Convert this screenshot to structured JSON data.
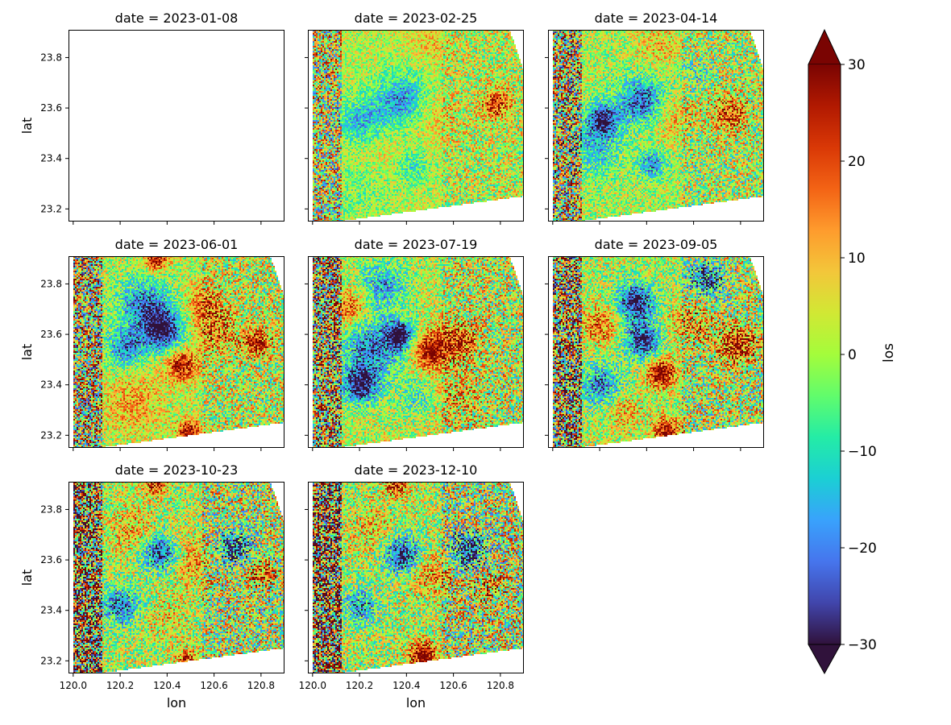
{
  "figure": {
    "variable": "los",
    "xlabel": "lon",
    "ylabel": "lat",
    "facet_key": "date"
  },
  "chart_data": {
    "type": "heatmap",
    "facet_by": "date",
    "panels": [
      {
        "title": "date = 2023-01-08",
        "date": "2023-01-08",
        "has_data": false
      },
      {
        "title": "date = 2023-02-25",
        "date": "2023-02-25",
        "has_data": true,
        "blobs": [
          [
            120.38,
            23.63,
            12,
            -22
          ],
          [
            120.2,
            23.55,
            10,
            -16
          ],
          [
            120.5,
            23.58,
            12,
            8
          ],
          [
            120.78,
            23.62,
            6,
            22
          ],
          [
            120.3,
            23.42,
            10,
            4
          ],
          [
            120.42,
            23.37,
            7,
            -12
          ],
          [
            120.2,
            23.28,
            12,
            -6
          ],
          [
            120.5,
            23.86,
            10,
            6
          ]
        ],
        "noise": 10,
        "base": 2
      },
      {
        "title": "date = 2023-04-14",
        "date": "2023-04-14",
        "has_data": true,
        "blobs": [
          [
            120.38,
            23.63,
            10,
            -26
          ],
          [
            120.21,
            23.56,
            7,
            -28
          ],
          [
            120.18,
            23.45,
            12,
            -14
          ],
          [
            120.5,
            23.57,
            10,
            9
          ],
          [
            120.75,
            23.58,
            8,
            20
          ],
          [
            120.42,
            23.38,
            6,
            -20
          ],
          [
            120.6,
            23.74,
            7,
            -8
          ],
          [
            120.45,
            23.85,
            10,
            8
          ]
        ],
        "noise": 12,
        "base": 1
      },
      {
        "title": "date = 2023-06-01",
        "date": "2023-06-01",
        "has_data": true,
        "blobs": [
          [
            120.38,
            23.62,
            9,
            -32
          ],
          [
            120.3,
            23.72,
            12,
            -22
          ],
          [
            120.22,
            23.55,
            8,
            -22
          ],
          [
            120.46,
            23.48,
            7,
            24
          ],
          [
            120.6,
            23.62,
            10,
            14
          ],
          [
            120.25,
            23.33,
            12,
            10
          ],
          [
            120.49,
            23.22,
            5,
            26
          ],
          [
            120.35,
            23.9,
            5,
            24
          ],
          [
            120.78,
            23.57,
            6,
            24
          ],
          [
            120.55,
            23.73,
            8,
            14
          ]
        ],
        "noise": 12,
        "base": 2
      },
      {
        "title": "date = 2023-07-19",
        "date": "2023-07-19",
        "has_data": true,
        "blobs": [
          [
            120.37,
            23.6,
            6,
            -34
          ],
          [
            120.2,
            23.4,
            8,
            -30
          ],
          [
            120.25,
            23.55,
            14,
            -22
          ],
          [
            120.3,
            23.8,
            10,
            -18
          ],
          [
            120.5,
            23.54,
            8,
            28
          ],
          [
            120.62,
            23.58,
            8,
            20
          ],
          [
            120.15,
            23.7,
            8,
            18
          ],
          [
            120.6,
            23.35,
            12,
            8
          ],
          [
            120.45,
            23.35,
            8,
            -12
          ]
        ],
        "noise": 13,
        "base": 2
      },
      {
        "title": "date = 2023-09-05",
        "date": "2023-09-05",
        "has_data": true,
        "blobs": [
          [
            120.35,
            23.73,
            8,
            -32
          ],
          [
            120.38,
            23.58,
            8,
            -30
          ],
          [
            120.2,
            23.4,
            9,
            -22
          ],
          [
            120.65,
            23.82,
            8,
            -24
          ],
          [
            120.46,
            23.45,
            6,
            32
          ],
          [
            120.2,
            23.64,
            8,
            16
          ],
          [
            120.78,
            23.56,
            8,
            26
          ],
          [
            120.58,
            23.65,
            10,
            12
          ],
          [
            120.48,
            23.22,
            6,
            26
          ],
          [
            120.3,
            23.3,
            8,
            10
          ]
        ],
        "noise": 14,
        "base": 1
      },
      {
        "title": "date = 2023-10-23",
        "date": "2023-10-23",
        "has_data": true,
        "blobs": [
          [
            120.37,
            23.63,
            8,
            -28
          ],
          [
            120.2,
            23.42,
            8,
            -24
          ],
          [
            120.68,
            23.65,
            8,
            -24
          ],
          [
            120.25,
            23.72,
            10,
            10
          ],
          [
            120.5,
            23.6,
            10,
            12
          ],
          [
            120.4,
            23.38,
            10,
            6
          ],
          [
            120.35,
            23.9,
            5,
            20
          ],
          [
            120.8,
            23.55,
            6,
            18
          ],
          [
            120.48,
            23.2,
            5,
            22
          ]
        ],
        "noise": 15,
        "base": 1
      },
      {
        "title": "date = 2023-12-10",
        "date": "2023-12-10",
        "has_data": true,
        "blobs": [
          [
            120.38,
            23.62,
            8,
            -30
          ],
          [
            120.66,
            23.64,
            8,
            -30
          ],
          [
            120.2,
            23.42,
            7,
            -20
          ],
          [
            120.47,
            23.22,
            6,
            32
          ],
          [
            120.25,
            23.72,
            10,
            8
          ],
          [
            120.5,
            23.55,
            10,
            12
          ],
          [
            120.75,
            23.5,
            8,
            10
          ],
          [
            120.35,
            23.9,
            5,
            22
          ]
        ],
        "noise": 16,
        "base": 1
      }
    ],
    "x_ticks": [
      120.0,
      120.2,
      120.4,
      120.6,
      120.8
    ],
    "x_tick_labels": [
      "120.0",
      "120.2",
      "120.4",
      "120.6",
      "120.8"
    ],
    "y_ticks": [
      23.2,
      23.4,
      23.6,
      23.8
    ],
    "y_tick_labels": [
      "23.2",
      "23.4",
      "23.6",
      "23.8"
    ],
    "xlim": [
      119.98,
      120.9
    ],
    "ylim": [
      23.15,
      23.91
    ],
    "footprint_corners_lonlat": [
      [
        120.0,
        23.91
      ],
      [
        120.84,
        23.91
      ],
      [
        120.9,
        23.75
      ],
      [
        120.9,
        23.25
      ],
      [
        120.11,
        23.15
      ],
      [
        120.0,
        23.15
      ]
    ],
    "colorbar": {
      "label": "los",
      "min": -30,
      "max": 30,
      "extend": "both",
      "ticks": [
        30,
        20,
        10,
        0,
        -10,
        -20,
        -30
      ],
      "tick_labels": [
        "30",
        "20",
        "10",
        "0",
        "−10",
        "−20",
        "−30"
      ],
      "colormap": "turbo",
      "colors": [
        "#30123b",
        "#4145ab",
        "#4675ed",
        "#39a2fc",
        "#1bcfd4",
        "#24eca6",
        "#61fc6c",
        "#a4fc3b",
        "#d1e834",
        "#f3c63a",
        "#fe9b2d",
        "#f36315",
        "#d93806",
        "#b11901",
        "#7a0402"
      ]
    }
  }
}
